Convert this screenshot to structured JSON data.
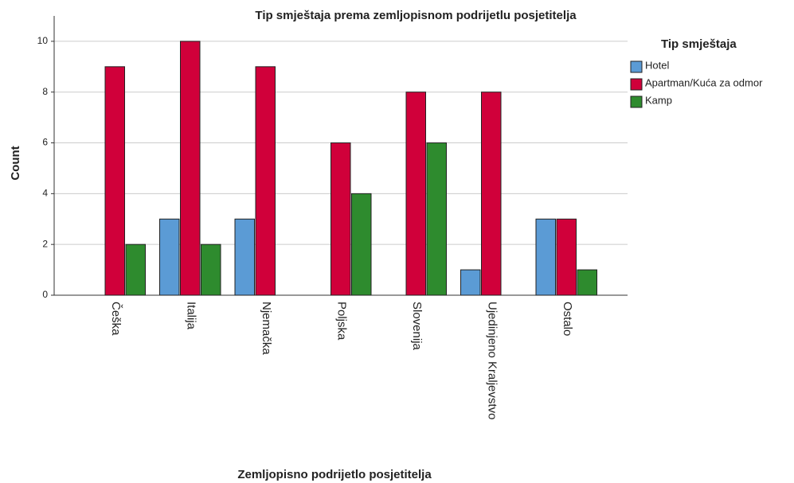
{
  "chart_data": {
    "type": "bar",
    "title": "Tip smještaja prema zemljopisnom podrijetlu posjetitelja",
    "x_label": "Zemljopisno podrijetlo posjetitelja",
    "y_label": "Count",
    "legend_title": "Tip smještaja",
    "categories": [
      "Češka",
      "Italija",
      "Njemačka",
      "Poljska",
      "Slovenija",
      "Ujedinjeno Kraljevstvo",
      "Ostalo"
    ],
    "series": [
      {
        "name": "Hotel",
        "color": "#5b9bd5",
        "values": [
          0,
          3,
          3,
          0,
          0,
          1,
          3
        ]
      },
      {
        "name": "Apartman/Kuća za odmor",
        "color": "#d0003a",
        "values": [
          9,
          10,
          9,
          6,
          8,
          8,
          3
        ]
      },
      {
        "name": "Kamp",
        "color": "#2e8b2e",
        "values": [
          2,
          2,
          0,
          4,
          6,
          0,
          1
        ]
      }
    ],
    "ylim": [
      0,
      11
    ],
    "yticks": [
      0,
      2,
      4,
      6,
      8,
      10
    ],
    "grid": true,
    "legend": "right"
  }
}
